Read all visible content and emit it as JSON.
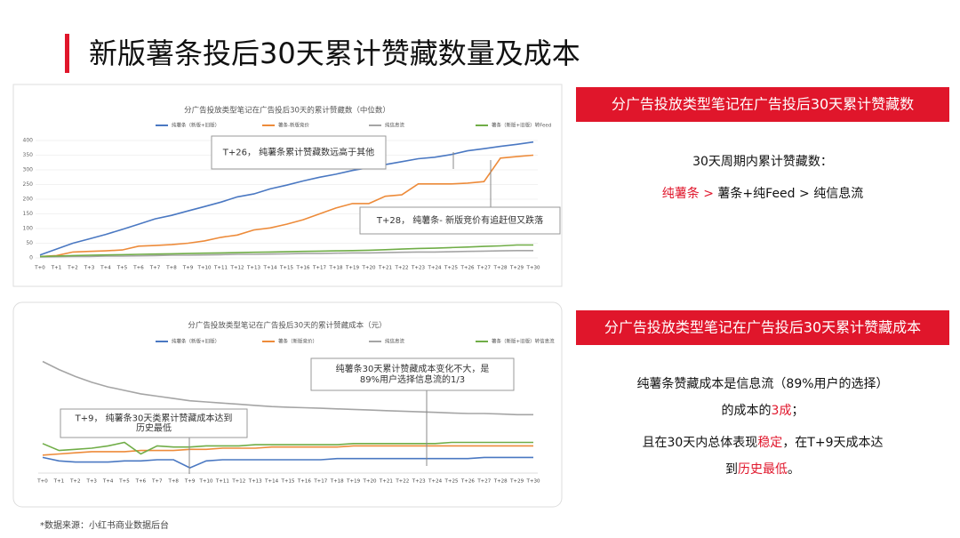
{
  "header": {
    "title": "新版薯条投后30天累计赞藏数量及成本"
  },
  "panels": [
    {
      "banner": "分广告投放类型笔记在广告投后30天累计赞藏数",
      "paragraphs": [
        [
          {
            "text": "30天周期内累计赞藏数：",
            "color": "#111"
          }
        ],
        [
          {
            "text": "纯薯条",
            "color": "#e0162b"
          },
          {
            "text": " > ",
            "color": "#e0162b"
          },
          {
            "text": "薯条+纯Feed",
            "color": "#111"
          },
          {
            "text": " > ",
            "color": "#111"
          },
          {
            "text": "纯信息流",
            "color": "#111"
          }
        ]
      ]
    },
    {
      "banner": "分广告投放类型笔记在广告投后30天累计赞藏成本",
      "paragraphs": [
        [
          {
            "text": "纯薯条赞藏成本是信息流（89%用户的选择）",
            "color": "#111"
          }
        ],
        [
          {
            "text": "的成本的",
            "color": "#111"
          },
          {
            "text": "3成",
            "color": "#e0162b"
          },
          {
            "text": "；",
            "color": "#111"
          }
        ],
        [
          {
            "text": "且在30天内总体表现",
            "color": "#111"
          },
          {
            "text": "稳定",
            "color": "#e0162b"
          },
          {
            "text": "，在T+9天成本达",
            "color": "#111"
          }
        ],
        [
          {
            "text": "到",
            "color": "#111"
          },
          {
            "text": "历史最低",
            "color": "#e0162b"
          },
          {
            "text": "。",
            "color": "#111"
          }
        ]
      ]
    }
  ],
  "footnote": "*数据来源：小红书商业数据后台",
  "chart_data": [
    {
      "type": "line",
      "title": "分广告投放类型笔记在广告投后30天的累计赞藏数（中位数）",
      "categories": [
        "T+0",
        "T+1",
        "T+2",
        "T+3",
        "T+4",
        "T+5",
        "T+6",
        "T+7",
        "T+8",
        "T+9",
        "T+10",
        "T+11",
        "T+12",
        "T+13",
        "T+14",
        "T+15",
        "T+16",
        "T+17",
        "T+18",
        "T+19",
        "T+20",
        "T+21",
        "T+22",
        "T+23",
        "T+24",
        "T+25",
        "T+26",
        "T+27",
        "T+28",
        "T+29",
        "T+30"
      ],
      "ylim": [
        0,
        400
      ],
      "yticks": [
        0,
        50,
        100,
        150,
        200,
        250,
        300,
        350,
        400
      ],
      "grid": true,
      "series": [
        {
          "name": "纯薯条（新版+旧版）",
          "color": "#4a78c2",
          "values": [
            10,
            30,
            50,
            65,
            80,
            97,
            115,
            133,
            145,
            160,
            175,
            190,
            208,
            218,
            235,
            248,
            262,
            275,
            285,
            298,
            308,
            318,
            328,
            338,
            343,
            352,
            365,
            372,
            380,
            387,
            395
          ]
        },
        {
          "name": "薯条-新版竞价",
          "color": "#ed8b3a",
          "values": [
            5,
            8,
            20,
            22,
            24,
            27,
            40,
            42,
            45,
            50,
            58,
            70,
            78,
            95,
            102,
            115,
            130,
            150,
            170,
            185,
            185,
            210,
            215,
            252,
            252,
            252,
            255,
            260,
            340,
            345,
            350
          ]
        },
        {
          "name": "纯信息流",
          "color": "#a5a5a5",
          "values": [
            3,
            4,
            5,
            5,
            6,
            6,
            7,
            8,
            9,
            9,
            10,
            11,
            12,
            12,
            13,
            14,
            15,
            15,
            16,
            17,
            17,
            18,
            19,
            20,
            20,
            21,
            22,
            23,
            24,
            25,
            25
          ]
        },
        {
          "name": "薯条（新版+旧版）转Feed",
          "color": "#70ad47",
          "values": [
            5,
            6,
            8,
            9,
            10,
            11,
            12,
            13,
            14,
            15,
            16,
            17,
            18,
            19,
            20,
            21,
            22,
            23,
            24,
            25,
            26,
            28,
            30,
            32,
            33,
            35,
            37,
            39,
            41,
            44,
            44
          ]
        }
      ],
      "annotations": [
        {
          "lines": [
            "T+26， 纯薯条累计赞藏数远高于其他"
          ]
        },
        {
          "lines": [
            "T+28， 纯薯条- 新版竞价有追赶但又跌落"
          ]
        }
      ]
    },
    {
      "type": "line",
      "title": "分广告投放类型笔记在广告投后30天的累计赞藏成本（元）",
      "categories": [
        "T+0",
        "T+1",
        "T+2",
        "T+3",
        "T+4",
        "T+5",
        "T+6",
        "T+7",
        "T+8",
        "T+9",
        "T+10",
        "T+11",
        "T+12",
        "T+13",
        "T+14",
        "T+15",
        "T+16",
        "T+17",
        "T+18",
        "T+19",
        "T+20",
        "T+21",
        "T+22",
        "T+23",
        "T+24",
        "T+25",
        "T+26",
        "T+27",
        "T+28",
        "T+29",
        "T+30"
      ],
      "ylim": [
        0,
        100
      ],
      "grid": true,
      "series": [
        {
          "name": "纯薯条（新版+旧版）",
          "color": "#4a78c2",
          "values": [
            12,
            9,
            8,
            8,
            8,
            9,
            9,
            10,
            10,
            3,
            9,
            10,
            10,
            10,
            10,
            10,
            10,
            10,
            11,
            11,
            11,
            11,
            11,
            11,
            11,
            11,
            11,
            12,
            12,
            12,
            12
          ]
        },
        {
          "name": "薯条（新版竞价）",
          "color": "#ed8b3a",
          "values": [
            14,
            15,
            16,
            17,
            17,
            17,
            18,
            18,
            18,
            19,
            19,
            20,
            20,
            20,
            21,
            21,
            21,
            21,
            21,
            22,
            22,
            22,
            22,
            22,
            22,
            22,
            22,
            22,
            22,
            22,
            22
          ]
        },
        {
          "name": "纯信息流",
          "color": "#a5a5a5",
          "values": [
            95,
            88,
            82,
            77,
            73,
            70,
            67,
            65,
            63,
            61,
            60,
            59,
            58,
            57,
            56,
            55.5,
            55,
            54.5,
            54,
            53.5,
            53,
            52.5,
            52,
            51.5,
            51,
            50.5,
            50,
            50,
            49.5,
            49,
            49
          ]
        },
        {
          "name": "薯条（新版+旧版）转信息流",
          "color": "#70ad47",
          "values": [
            24,
            18,
            19,
            20,
            22,
            25,
            15,
            22,
            21,
            21,
            22,
            22,
            22,
            23,
            23,
            23,
            23,
            23,
            23,
            24,
            24,
            24,
            24,
            24,
            24,
            25,
            25,
            25,
            25,
            25,
            25
          ]
        }
      ],
      "annotations": [
        {
          "lines": [
            "纯薯条30天累计赞藏成本变化不大，是",
            "89%用户选择信息流的1/3"
          ]
        },
        {
          "lines": [
            "T+9， 纯薯条30天类累计赞藏成本达到",
            "历史最低"
          ]
        }
      ]
    }
  ]
}
